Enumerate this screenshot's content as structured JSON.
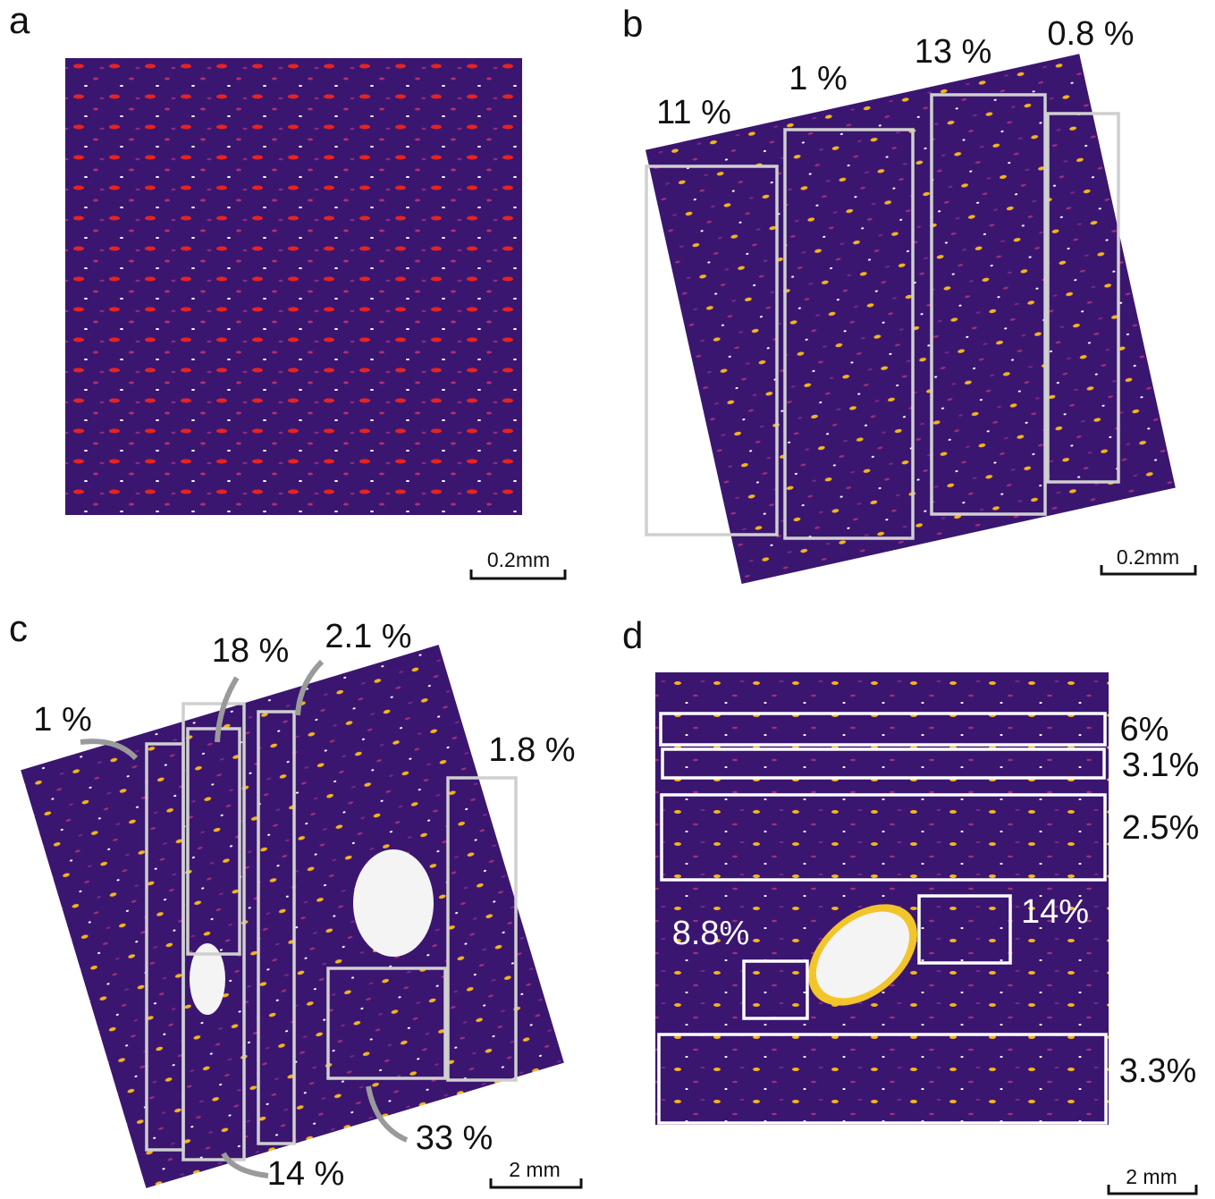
{
  "panels": [
    {
      "label": "a",
      "scale_bar": "0.2mm",
      "annotations": []
    },
    {
      "label": "b",
      "scale_bar": "0.2mm",
      "annotations": [
        "11 %",
        "1 %",
        "13 %",
        "0.8 %"
      ]
    },
    {
      "label": "c",
      "scale_bar": "2 mm",
      "annotations": [
        "1 %",
        "18 %",
        "2.1 %",
        "1.8 %",
        "33 %",
        "14 %"
      ]
    },
    {
      "label": "d",
      "scale_bar": "2 mm",
      "annotations": [
        "6%",
        "3.1%",
        "2.5%",
        "8.8%",
        "14%",
        "3.3%"
      ]
    }
  ]
}
